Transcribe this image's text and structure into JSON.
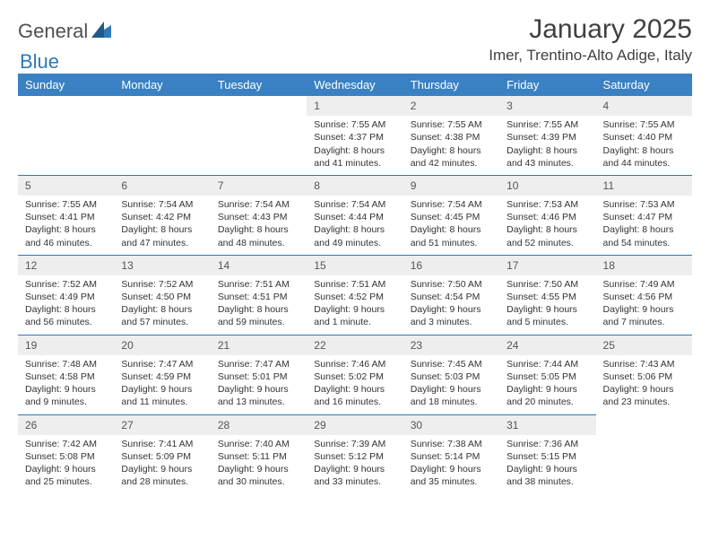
{
  "brand": {
    "part1": "General",
    "part2": "Blue"
  },
  "title": "January 2025",
  "location": "Imer, Trentino-Alto Adige, Italy",
  "colors": {
    "header_bg": "#3a81c3",
    "header_text": "#ffffff",
    "daynum_bg": "#eeeeee",
    "row_divider": "#2e79b8",
    "text": "#333333",
    "background": "#ffffff"
  },
  "weekdays": [
    "Sunday",
    "Monday",
    "Tuesday",
    "Wednesday",
    "Thursday",
    "Friday",
    "Saturday"
  ],
  "weeks": [
    [
      null,
      null,
      null,
      {
        "n": "1",
        "sr": "7:55 AM",
        "ss": "4:37 PM",
        "dl": "8 hours and 41 minutes."
      },
      {
        "n": "2",
        "sr": "7:55 AM",
        "ss": "4:38 PM",
        "dl": "8 hours and 42 minutes."
      },
      {
        "n": "3",
        "sr": "7:55 AM",
        "ss": "4:39 PM",
        "dl": "8 hours and 43 minutes."
      },
      {
        "n": "4",
        "sr": "7:55 AM",
        "ss": "4:40 PM",
        "dl": "8 hours and 44 minutes."
      }
    ],
    [
      {
        "n": "5",
        "sr": "7:55 AM",
        "ss": "4:41 PM",
        "dl": "8 hours and 46 minutes."
      },
      {
        "n": "6",
        "sr": "7:54 AM",
        "ss": "4:42 PM",
        "dl": "8 hours and 47 minutes."
      },
      {
        "n": "7",
        "sr": "7:54 AM",
        "ss": "4:43 PM",
        "dl": "8 hours and 48 minutes."
      },
      {
        "n": "8",
        "sr": "7:54 AM",
        "ss": "4:44 PM",
        "dl": "8 hours and 49 minutes."
      },
      {
        "n": "9",
        "sr": "7:54 AM",
        "ss": "4:45 PM",
        "dl": "8 hours and 51 minutes."
      },
      {
        "n": "10",
        "sr": "7:53 AM",
        "ss": "4:46 PM",
        "dl": "8 hours and 52 minutes."
      },
      {
        "n": "11",
        "sr": "7:53 AM",
        "ss": "4:47 PM",
        "dl": "8 hours and 54 minutes."
      }
    ],
    [
      {
        "n": "12",
        "sr": "7:52 AM",
        "ss": "4:49 PM",
        "dl": "8 hours and 56 minutes."
      },
      {
        "n": "13",
        "sr": "7:52 AM",
        "ss": "4:50 PM",
        "dl": "8 hours and 57 minutes."
      },
      {
        "n": "14",
        "sr": "7:51 AM",
        "ss": "4:51 PM",
        "dl": "8 hours and 59 minutes."
      },
      {
        "n": "15",
        "sr": "7:51 AM",
        "ss": "4:52 PM",
        "dl": "9 hours and 1 minute."
      },
      {
        "n": "16",
        "sr": "7:50 AM",
        "ss": "4:54 PM",
        "dl": "9 hours and 3 minutes."
      },
      {
        "n": "17",
        "sr": "7:50 AM",
        "ss": "4:55 PM",
        "dl": "9 hours and 5 minutes."
      },
      {
        "n": "18",
        "sr": "7:49 AM",
        "ss": "4:56 PM",
        "dl": "9 hours and 7 minutes."
      }
    ],
    [
      {
        "n": "19",
        "sr": "7:48 AM",
        "ss": "4:58 PM",
        "dl": "9 hours and 9 minutes."
      },
      {
        "n": "20",
        "sr": "7:47 AM",
        "ss": "4:59 PM",
        "dl": "9 hours and 11 minutes."
      },
      {
        "n": "21",
        "sr": "7:47 AM",
        "ss": "5:01 PM",
        "dl": "9 hours and 13 minutes."
      },
      {
        "n": "22",
        "sr": "7:46 AM",
        "ss": "5:02 PM",
        "dl": "9 hours and 16 minutes."
      },
      {
        "n": "23",
        "sr": "7:45 AM",
        "ss": "5:03 PM",
        "dl": "9 hours and 18 minutes."
      },
      {
        "n": "24",
        "sr": "7:44 AM",
        "ss": "5:05 PM",
        "dl": "9 hours and 20 minutes."
      },
      {
        "n": "25",
        "sr": "7:43 AM",
        "ss": "5:06 PM",
        "dl": "9 hours and 23 minutes."
      }
    ],
    [
      {
        "n": "26",
        "sr": "7:42 AM",
        "ss": "5:08 PM",
        "dl": "9 hours and 25 minutes."
      },
      {
        "n": "27",
        "sr": "7:41 AM",
        "ss": "5:09 PM",
        "dl": "9 hours and 28 minutes."
      },
      {
        "n": "28",
        "sr": "7:40 AM",
        "ss": "5:11 PM",
        "dl": "9 hours and 30 minutes."
      },
      {
        "n": "29",
        "sr": "7:39 AM",
        "ss": "5:12 PM",
        "dl": "9 hours and 33 minutes."
      },
      {
        "n": "30",
        "sr": "7:38 AM",
        "ss": "5:14 PM",
        "dl": "9 hours and 35 minutes."
      },
      {
        "n": "31",
        "sr": "7:36 AM",
        "ss": "5:15 PM",
        "dl": "9 hours and 38 minutes."
      },
      null
    ]
  ],
  "labels": {
    "sunrise": "Sunrise:",
    "sunset": "Sunset:",
    "daylight": "Daylight:"
  }
}
